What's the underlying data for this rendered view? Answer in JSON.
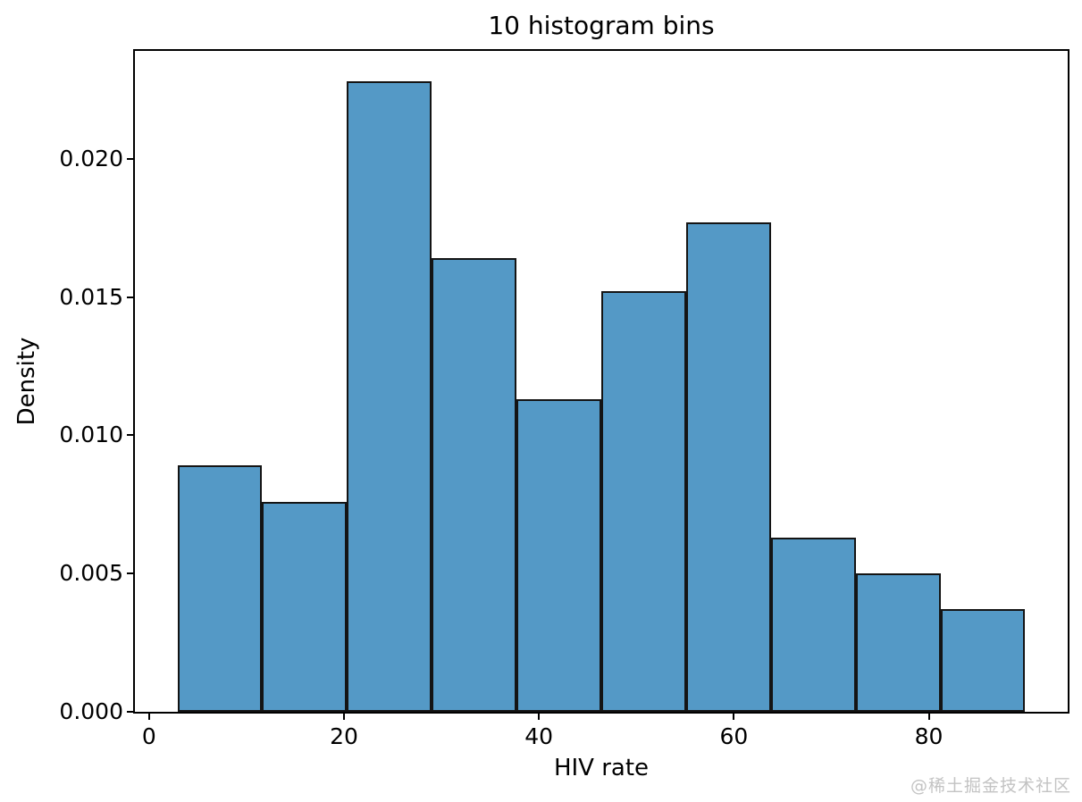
{
  "title": "10 histogram bins",
  "watermark": "@稀土掘金技术社区",
  "colors": {
    "bar_fill": "#5499c6",
    "bar_edge": "#141414",
    "axis": "#000000",
    "text": "#000000",
    "watermark": "#c3c3c3",
    "background": "#ffffff"
  },
  "chart_data": {
    "type": "bar",
    "subtype": "histogram",
    "title": "10 histogram bins",
    "xlabel": "HIV rate",
    "ylabel": "Density",
    "bin_edges": [
      2.9,
      11.6,
      20.3,
      29.0,
      37.7,
      46.4,
      55.1,
      63.8,
      72.5,
      81.2,
      89.9
    ],
    "densities": [
      0.0089,
      0.0076,
      0.0228,
      0.0164,
      0.0113,
      0.0152,
      0.0177,
      0.0063,
      0.005,
      0.0037
    ],
    "xlim": [
      -1.45,
      94.25
    ],
    "ylim": [
      0,
      0.0239
    ],
    "x_ticks": [
      0,
      20,
      40,
      60,
      80
    ],
    "y_ticks": [
      "0.000",
      "0.005",
      "0.010",
      "0.015",
      "0.020"
    ],
    "grid": false,
    "legend_position": "none",
    "bar_color": "#5499c6",
    "bar_edge_color": "#141414"
  }
}
